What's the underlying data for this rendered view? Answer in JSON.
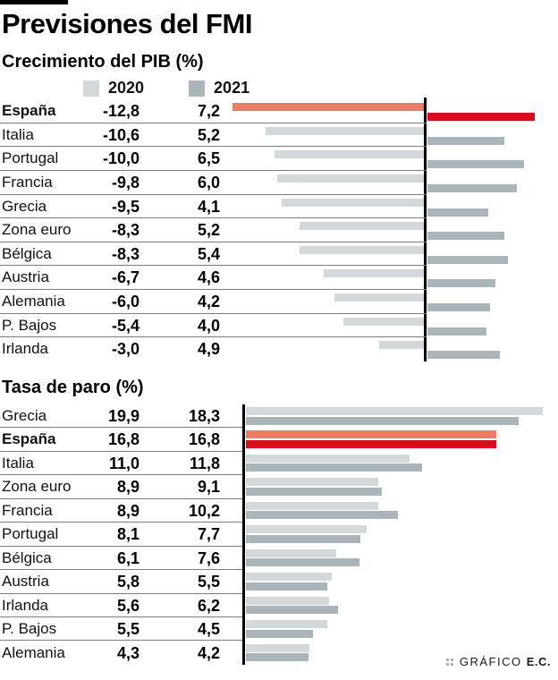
{
  "header": {
    "title": "Previsiones del FMI"
  },
  "colors": {
    "bar2020": "#D3D8DB",
    "bar2021": "#A9B4BB",
    "highlight2020": "#E87F62",
    "highlight2021": "#D60E1C",
    "axis": "#000000",
    "divider": "#7d7d7d"
  },
  "chart_data": [
    {
      "type": "bar",
      "title": "Crecimiento del PIB (%)",
      "orientation": "horizontal-diverging",
      "legend": [
        "2020",
        "2021"
      ],
      "legend_position": "top",
      "series_names": [
        "2020",
        "2021"
      ],
      "rows": [
        {
          "label": "España",
          "values": [
            -12.8,
            7.2
          ],
          "display": [
            "-12,8",
            "7,2"
          ],
          "highlight": true
        },
        {
          "label": "Italia",
          "values": [
            -10.6,
            5.2
          ],
          "display": [
            "-10,6",
            "5,2"
          ],
          "highlight": false
        },
        {
          "label": "Portugal",
          "values": [
            -10.0,
            6.5
          ],
          "display": [
            "-10,0",
            "6,5"
          ],
          "highlight": false
        },
        {
          "label": "Francia",
          "values": [
            -9.8,
            6.0
          ],
          "display": [
            "-9,8",
            "6,0"
          ],
          "highlight": false
        },
        {
          "label": "Grecia",
          "values": [
            -9.5,
            4.1
          ],
          "display": [
            "-9,5",
            "4,1"
          ],
          "highlight": false
        },
        {
          "label": "Zona euro",
          "values": [
            -8.3,
            5.2
          ],
          "display": [
            "-8,3",
            "5,2"
          ],
          "highlight": false
        },
        {
          "label": "Bélgica",
          "values": [
            -8.3,
            5.4
          ],
          "display": [
            "-8,3",
            "5,4"
          ],
          "highlight": false
        },
        {
          "label": "Austria",
          "values": [
            -6.7,
            4.6
          ],
          "display": [
            "-6,7",
            "4,6"
          ],
          "highlight": false
        },
        {
          "label": "Alemania",
          "values": [
            -6.0,
            4.2
          ],
          "display": [
            "-6,0",
            "4,2"
          ],
          "highlight": false
        },
        {
          "label": "P. Bajos",
          "values": [
            -5.4,
            4.0
          ],
          "display": [
            "-5,4",
            "4,0"
          ],
          "highlight": false
        },
        {
          "label": "Irlanda",
          "values": [
            -3.0,
            4.9
          ],
          "display": [
            "-3,0",
            "4,9"
          ],
          "highlight": false
        }
      ]
    },
    {
      "type": "bar",
      "title": "Tasa de paro (%)",
      "orientation": "horizontal",
      "legend": [
        "2020",
        "2021"
      ],
      "legend_position": "none",
      "series_names": [
        "2020",
        "2021"
      ],
      "rows": [
        {
          "label": "Grecia",
          "values": [
            19.9,
            18.3
          ],
          "display": [
            "19,9",
            "18,3"
          ],
          "highlight": false
        },
        {
          "label": "España",
          "values": [
            16.8,
            16.8
          ],
          "display": [
            "16,8",
            "16,8"
          ],
          "highlight": true
        },
        {
          "label": "Italia",
          "values": [
            11.0,
            11.8
          ],
          "display": [
            "11,0",
            "11,8"
          ],
          "highlight": false
        },
        {
          "label": "Zona euro",
          "values": [
            8.9,
            9.1
          ],
          "display": [
            "8,9",
            "9,1"
          ],
          "highlight": false
        },
        {
          "label": "Francia",
          "values": [
            8.9,
            10.2
          ],
          "display": [
            "8,9",
            "10,2"
          ],
          "highlight": false
        },
        {
          "label": "Portugal",
          "values": [
            8.1,
            7.7
          ],
          "display": [
            "8,1",
            "7,7"
          ],
          "highlight": false
        },
        {
          "label": "Bélgica",
          "values": [
            6.1,
            7.6
          ],
          "display": [
            "6,1",
            "7,6"
          ],
          "highlight": false
        },
        {
          "label": "Austria",
          "values": [
            5.8,
            5.5
          ],
          "display": [
            "5,8",
            "5,5"
          ],
          "highlight": false
        },
        {
          "label": "Irlanda",
          "values": [
            5.6,
            6.2
          ],
          "display": [
            "5,6",
            "6,2"
          ],
          "highlight": false
        },
        {
          "label": "P. Bajos",
          "values": [
            5.5,
            4.5
          ],
          "display": [
            "5,5",
            "4,5"
          ],
          "highlight": false
        },
        {
          "label": "Alemania",
          "values": [
            4.3,
            4.2
          ],
          "display": [
            "4,3",
            "4,2"
          ],
          "highlight": false
        }
      ]
    }
  ],
  "footer": {
    "credit_label": "GRÁFICO",
    "credit_bold": "E.C."
  }
}
